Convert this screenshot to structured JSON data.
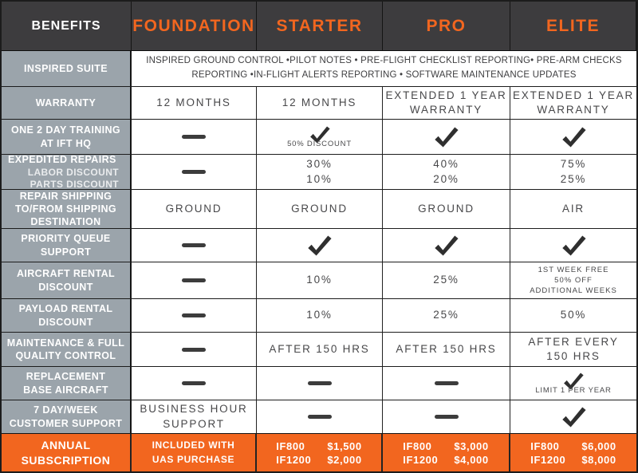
{
  "colors": {
    "accent_orange": "#f2661f",
    "header_bg": "#3d3c3e",
    "label_gray": "#9ba4ab",
    "check_dark": "#2f2f2f",
    "cell_text": "#48484a"
  },
  "header": {
    "benefits_label": "BENEFITS",
    "plans": [
      "FOUNDATION",
      "STARTER",
      "PRO",
      "ELITE"
    ]
  },
  "inspired_suite": {
    "label": "INSPIRED SUITE",
    "lines": [
      "INSPIRED GROUND CONTROL •PILOT NOTES • PRE-FLIGHT CHECKLIST REPORTING•  PRE-ARM CHECKS",
      "REPORTING  •IN-FLIGHT ALERTS REPORTING • SOFTWARE MAINTENANCE UPDATES"
    ]
  },
  "rows": [
    {
      "id": "warranty",
      "label": [
        "WARRANTY"
      ],
      "cells": [
        {
          "type": "text",
          "lines": [
            "12 MONTHS"
          ]
        },
        {
          "type": "text",
          "lines": [
            "12 MONTHS"
          ]
        },
        {
          "type": "text",
          "lines": [
            "EXTENDED 1 YEAR",
            "WARRANTY"
          ]
        },
        {
          "type": "text",
          "lines": [
            "EXTENDED 1 YEAR",
            "WARRANTY"
          ]
        }
      ]
    },
    {
      "id": "one-2-day-training",
      "label": [
        "ONE 2 DAY TRAINING",
        "AT IFT HQ"
      ],
      "cells": [
        {
          "type": "dash"
        },
        {
          "type": "check",
          "caption": "50% DISCOUNT"
        },
        {
          "type": "check"
        },
        {
          "type": "check"
        }
      ]
    },
    {
      "id": "expedited-repairs",
      "label": [
        "EXPEDITED REPAIRS"
      ],
      "sublabels": [
        "LABOR DISCOUNT",
        "PARTS DISCOUNT"
      ],
      "cells": [
        {
          "type": "dash"
        },
        {
          "type": "text",
          "lines": [
            "30%",
            "10%"
          ]
        },
        {
          "type": "text",
          "lines": [
            "40%",
            "20%"
          ]
        },
        {
          "type": "text",
          "lines": [
            "75%",
            "25%"
          ]
        }
      ]
    },
    {
      "id": "repair-shipping",
      "label": [
        "REPAIR SHIPPING",
        "TO/FROM SHIPPING",
        "DESTINATION"
      ],
      "cells": [
        {
          "type": "text",
          "lines": [
            "GROUND"
          ]
        },
        {
          "type": "text",
          "lines": [
            "GROUND"
          ]
        },
        {
          "type": "text",
          "lines": [
            "GROUND"
          ]
        },
        {
          "type": "text",
          "lines": [
            "AIR"
          ]
        }
      ]
    },
    {
      "id": "priority-queue-support",
      "label": [
        "PRIORITY QUEUE",
        "SUPPORT"
      ],
      "cells": [
        {
          "type": "dash"
        },
        {
          "type": "check"
        },
        {
          "type": "check"
        },
        {
          "type": "check"
        }
      ]
    },
    {
      "id": "aircraft-rental-discount",
      "label": [
        "AIRCRAFT RENTAL",
        "DISCOUNT"
      ],
      "cells": [
        {
          "type": "dash"
        },
        {
          "type": "text",
          "lines": [
            "10%"
          ]
        },
        {
          "type": "text",
          "lines": [
            "25%"
          ]
        },
        {
          "type": "smalltext",
          "lines": [
            "1ST WEEK FREE",
            "50% OFF",
            "ADDITIONAL WEEKS"
          ]
        }
      ]
    },
    {
      "id": "payload-rental-discount",
      "label": [
        "PAYLOAD RENTAL",
        "DISCOUNT"
      ],
      "cells": [
        {
          "type": "dash"
        },
        {
          "type": "text",
          "lines": [
            "10%"
          ]
        },
        {
          "type": "text",
          "lines": [
            "25%"
          ]
        },
        {
          "type": "text",
          "lines": [
            "50%"
          ]
        }
      ]
    },
    {
      "id": "maintenance-quality-control",
      "label": [
        "MAINTENANCE & FULL",
        "QUALITY CONTROL"
      ],
      "cells": [
        {
          "type": "dash"
        },
        {
          "type": "text",
          "lines": [
            "AFTER 150 HRS"
          ]
        },
        {
          "type": "text",
          "lines": [
            "AFTER 150 HRS"
          ]
        },
        {
          "type": "text",
          "lines": [
            "AFTER EVERY",
            "150 HRS"
          ]
        }
      ]
    },
    {
      "id": "replacement-base-aircraft",
      "label": [
        "REPLACEMENT",
        "BASE AIRCRAFT"
      ],
      "cells": [
        {
          "type": "dash"
        },
        {
          "type": "dash"
        },
        {
          "type": "dash"
        },
        {
          "type": "check",
          "caption": "LIMIT 1 PER YEAR"
        }
      ]
    },
    {
      "id": "customer-support",
      "label": [
        "7 DAY/WEEK",
        "CUSTOMER SUPPORT"
      ],
      "cells": [
        {
          "type": "text",
          "lines": [
            "BUSINESS HOUR",
            "SUPPORT"
          ]
        },
        {
          "type": "dash"
        },
        {
          "type": "dash"
        },
        {
          "type": "check"
        }
      ]
    }
  ],
  "annual": {
    "label": [
      "ANNUAL",
      "SUBSCRIPTION"
    ],
    "cells": [
      {
        "type": "text",
        "lines": [
          "INCLUDED WITH",
          "UAS PURCHASE"
        ]
      },
      {
        "type": "pricing",
        "items": [
          [
            "IF800",
            "$1,500"
          ],
          [
            "IF1200",
            "$2,000"
          ]
        ]
      },
      {
        "type": "pricing",
        "items": [
          [
            "IF800",
            "$3,000"
          ],
          [
            "IF1200",
            "$4,000"
          ]
        ]
      },
      {
        "type": "pricing",
        "items": [
          [
            "IF800",
            "$6,000"
          ],
          [
            "IF1200",
            "$8,000"
          ]
        ]
      }
    ]
  },
  "icons": {
    "check": "check-icon",
    "dash": "dash-icon"
  }
}
